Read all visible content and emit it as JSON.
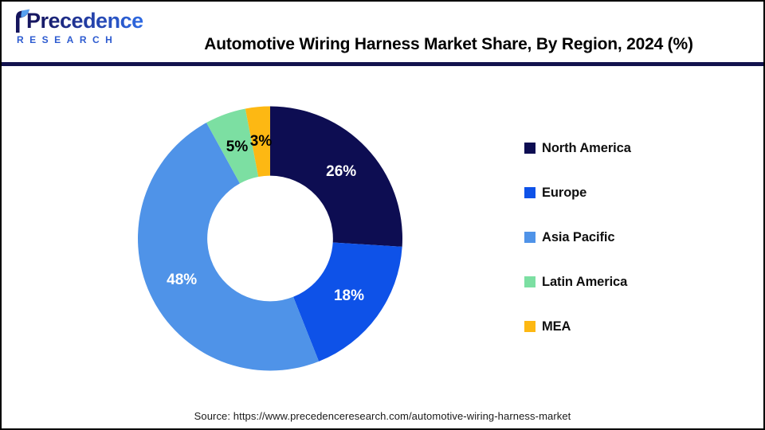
{
  "header": {
    "logo": {
      "brand": "Precedence",
      "sub": "RESEARCH"
    },
    "title": "Automotive Wiring Harness Market Share, By Region, 2024 (%)"
  },
  "chart_data": {
    "type": "pie",
    "subtype": "donut",
    "title": "Automotive Wiring Harness Market Share, By Region, 2024 (%)",
    "categories": [
      "North America",
      "Europe",
      "Asia Pacific",
      "Latin America",
      "MEA"
    ],
    "values": [
      26,
      18,
      48,
      5,
      3
    ],
    "labels": [
      "26%",
      "18%",
      "48%",
      "5%",
      "3%"
    ],
    "colors": [
      "#0D0D52",
      "#0E52E8",
      "#4F93E8",
      "#7CDFA2",
      "#FDB813"
    ],
    "label_text_colors": [
      "#FFFFFF",
      "#FFFFFF",
      "#FFFFFF",
      "#000000",
      "#000000"
    ],
    "unit": "%",
    "start_angle_deg": 0,
    "direction": "clockwise",
    "inner_radius_ratio": 0.475,
    "legend_position": "right"
  },
  "footer": {
    "source": "Source: https://www.precedenceresearch.com/automotive-wiring-harness-market"
  },
  "colors": {
    "divider": "#12124E",
    "page_border": "#000000",
    "brand_dark": "#161660",
    "brand_blue": "#2E6BE4",
    "research_blue": "#2D5BD0"
  }
}
